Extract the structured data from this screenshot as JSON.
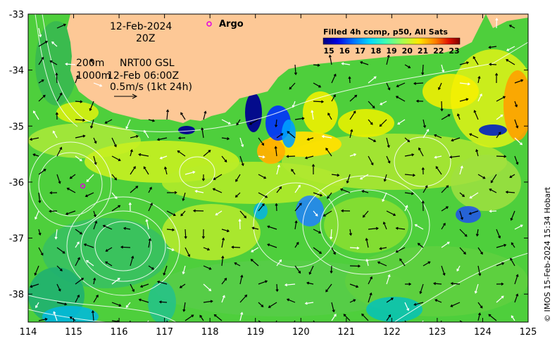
{
  "map": {
    "date_label": "12-Feb-2024",
    "time_label": "20Z",
    "isobath_label_1": "200m",
    "isobath_label_2": "1000m",
    "current_source": "NRT00 GSL",
    "current_time": "12-Feb 06:00Z",
    "current_scale": "0.5m/s (1kt 24h)",
    "argo_label": "Argo",
    "credit": "© IMOS 15-Feb-2024 15:34 Hobart",
    "colorbar": {
      "title": "Filled 4h comp, p50, All Sats",
      "ticks": [
        "15",
        "16",
        "17",
        "18",
        "19",
        "20",
        "21",
        "22",
        "23"
      ],
      "colors": [
        "#00007f",
        "#0000d0",
        "#0040ff",
        "#0098ff",
        "#00e0ff",
        "#40ffb8",
        "#9cff5c",
        "#f0f000",
        "#ffa800",
        "#ff4a00",
        "#d40000",
        "#800000"
      ]
    },
    "colors": {
      "land": "#fdc896",
      "sea_base": "#4ecf3c"
    }
  },
  "chart_data": {
    "type": "heatmap",
    "x_ticks": [
      "114",
      "115",
      "116",
      "117",
      "118",
      "119",
      "120",
      "121",
      "122",
      "123",
      "124",
      "125"
    ],
    "y_ticks": [
      "-33",
      "-34",
      "-35",
      "-36",
      "-37",
      "-38"
    ],
    "xlim": [
      114,
      125
    ],
    "ylim": [
      -38.5,
      -33
    ],
    "argo_floats": [
      {
        "lon": 117.98,
        "lat": -33.17
      },
      {
        "lon": 115.2,
        "lat": -36.07
      }
    ]
  }
}
